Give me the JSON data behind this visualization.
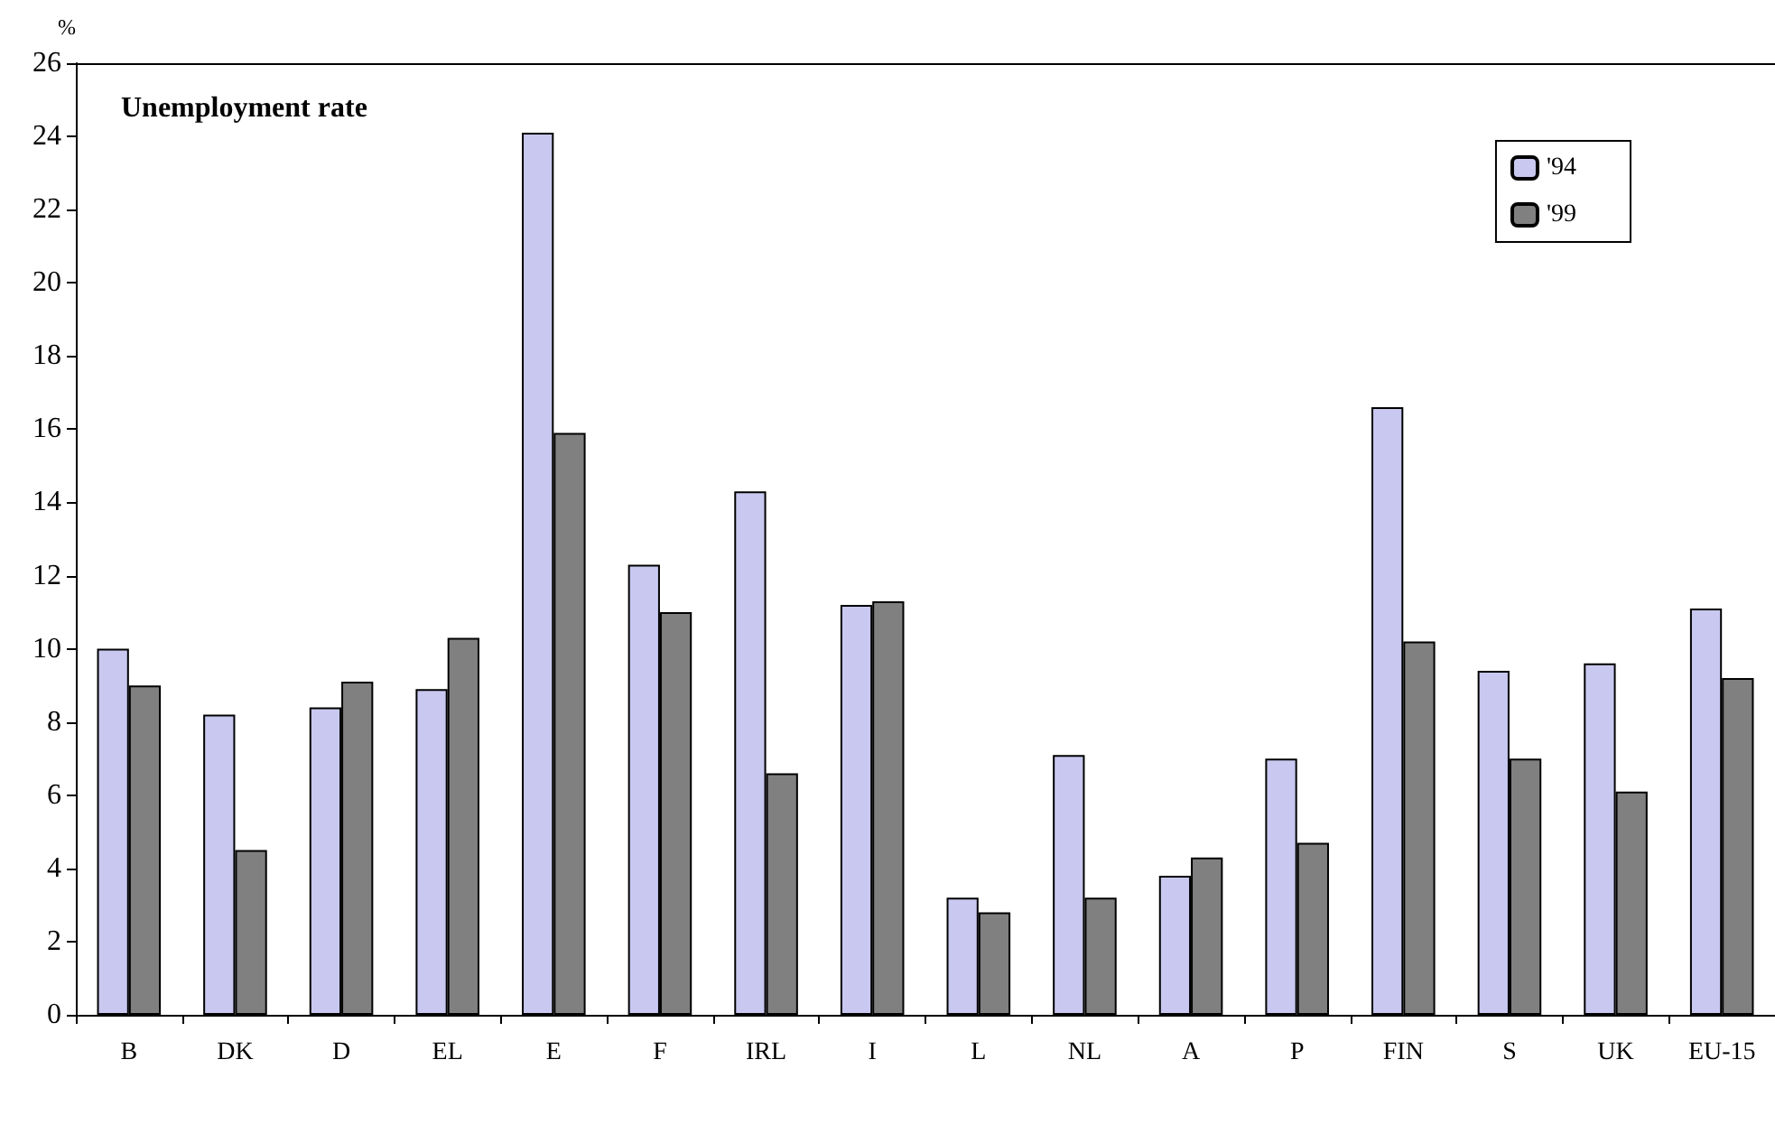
{
  "chart_data": {
    "type": "bar",
    "title": "Unemployment rate",
    "ylabel": "%",
    "categories": [
      "B",
      "DK",
      "D",
      "EL",
      "E",
      "F",
      "IRL",
      "I",
      "L",
      "NL",
      "A",
      "P",
      "FIN",
      "S",
      "UK",
      "EU-15"
    ],
    "series": [
      {
        "name": "'94",
        "color": "#c8c8f0",
        "values": [
          10.0,
          8.2,
          8.4,
          8.9,
          24.1,
          12.3,
          14.3,
          11.2,
          3.2,
          7.1,
          3.8,
          7.0,
          16.6,
          9.4,
          9.6,
          11.1
        ]
      },
      {
        "name": "'99",
        "color": "#808080",
        "values": [
          9.0,
          4.5,
          9.1,
          10.3,
          15.9,
          11.0,
          6.6,
          11.3,
          2.8,
          3.2,
          4.3,
          4.7,
          10.2,
          7.0,
          6.1,
          9.2
        ]
      }
    ],
    "ylim": [
      0,
      26
    ],
    "yticks": [
      0,
      2,
      4,
      6,
      8,
      10,
      12,
      14,
      16,
      18,
      20,
      22,
      24,
      26
    ],
    "grid": false,
    "legend": "top right"
  }
}
